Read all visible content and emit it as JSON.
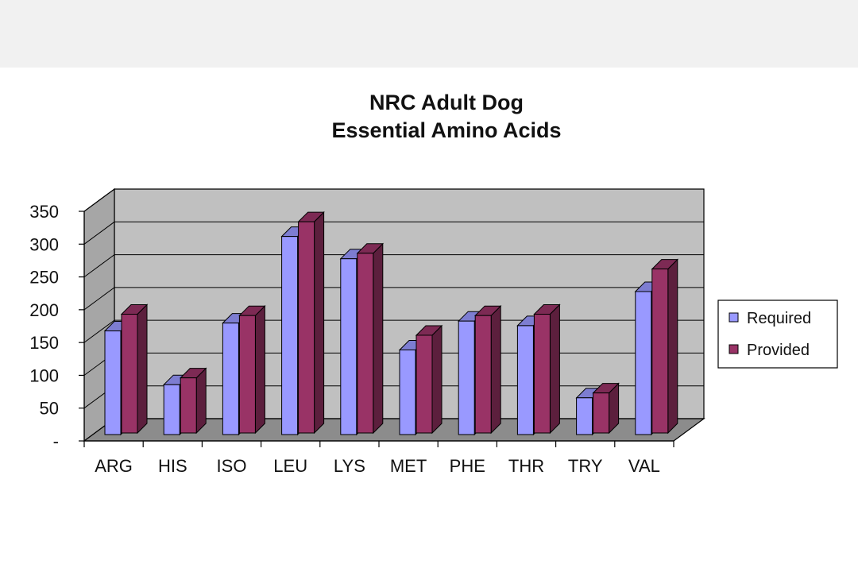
{
  "chart_data": {
    "type": "bar",
    "title": [
      "NRC Adult Dog",
      "Essential Amino Acids"
    ],
    "categories": [
      "ARG",
      "HIS",
      "ISO",
      "LEU",
      "LYS",
      "MET",
      "PHE",
      "THR",
      "TRY",
      "VAL"
    ],
    "series": [
      {
        "name": "Required",
        "values": [
          158,
          76,
          170,
          302,
          268,
          129,
          173,
          166,
          56,
          218
        ],
        "color": "#9999ff"
      },
      {
        "name": "Provided",
        "values": [
          181,
          84,
          179,
          322,
          274,
          149,
          179,
          181,
          61,
          250
        ],
        "color": "#993366"
      }
    ],
    "ylim": [
      0,
      350
    ],
    "yticks": [
      0,
      50,
      100,
      150,
      200,
      250,
      300,
      350
    ],
    "ytick_labels": [
      "-",
      "50",
      "100",
      "150",
      "200",
      "250",
      "300",
      "350"
    ],
    "legend_position": "right",
    "grid": true,
    "style": "3d-column",
    "colors": {
      "wall": "#c0c0c0",
      "side_wall": "#a6a6a6",
      "floor": "#8c8c8c"
    }
  }
}
